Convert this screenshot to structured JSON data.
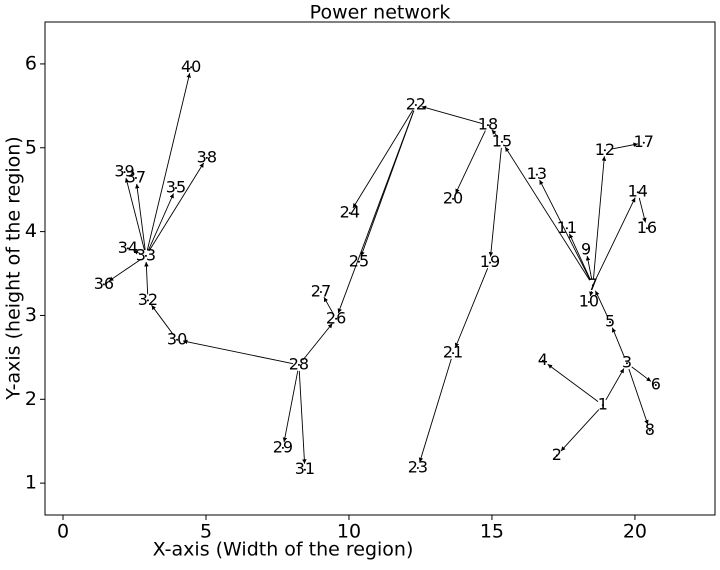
{
  "chart_data": {
    "type": "network",
    "title": "Power network",
    "x_label": "X-axis (Width of the region)",
    "y_label": "Y-axis (height of the region)",
    "xlim": [
      -0.63,
      22.8
    ],
    "ylim": [
      0.62,
      6.5
    ],
    "xticks": [
      0,
      5,
      10,
      15,
      20
    ],
    "yticks": [
      1,
      2,
      3,
      4,
      5,
      6
    ],
    "color": "#000000",
    "nodes": [
      {
        "label": "1",
        "x": 18.88,
        "y": 1.93
      },
      {
        "label": "2",
        "x": 17.27,
        "y": 1.33
      },
      {
        "label": "3",
        "x": 19.72,
        "y": 2.43
      },
      {
        "label": "4",
        "x": 16.78,
        "y": 2.46
      },
      {
        "label": "5",
        "x": 19.13,
        "y": 2.92
      },
      {
        "label": "6",
        "x": 20.73,
        "y": 2.17
      },
      {
        "label": "7",
        "x": 18.53,
        "y": 3.36
      },
      {
        "label": "8",
        "x": 20.52,
        "y": 1.63
      },
      {
        "label": "9",
        "x": 18.29,
        "y": 3.78
      },
      {
        "label": "10",
        "x": 18.39,
        "y": 3.16
      },
      {
        "label": "11",
        "x": 17.62,
        "y": 4.04
      },
      {
        "label": "12",
        "x": 18.95,
        "y": 4.97
      },
      {
        "label": "13",
        "x": 16.57,
        "y": 4.68
      },
      {
        "label": "14",
        "x": 20.1,
        "y": 4.47
      },
      {
        "label": "15",
        "x": 15.35,
        "y": 5.07
      },
      {
        "label": "16",
        "x": 20.42,
        "y": 4.04
      },
      {
        "label": "17",
        "x": 20.31,
        "y": 5.06
      },
      {
        "label": "18",
        "x": 14.86,
        "y": 5.27
      },
      {
        "label": "19",
        "x": 14.93,
        "y": 3.63
      },
      {
        "label": "20",
        "x": 13.64,
        "y": 4.39
      },
      {
        "label": "21",
        "x": 13.64,
        "y": 2.55
      },
      {
        "label": "22",
        "x": 12.34,
        "y": 5.51
      },
      {
        "label": "23",
        "x": 12.41,
        "y": 1.18
      },
      {
        "label": "24",
        "x": 10.03,
        "y": 4.22
      },
      {
        "label": "25",
        "x": 10.35,
        "y": 3.64
      },
      {
        "label": "26",
        "x": 9.55,
        "y": 2.96
      },
      {
        "label": "27",
        "x": 9.02,
        "y": 3.28
      },
      {
        "label": "28",
        "x": 8.25,
        "y": 2.41
      },
      {
        "label": "29",
        "x": 7.69,
        "y": 1.42
      },
      {
        "label": "30",
        "x": 3.99,
        "y": 2.71
      },
      {
        "label": "31",
        "x": 8.46,
        "y": 1.16
      },
      {
        "label": "32",
        "x": 2.97,
        "y": 3.18
      },
      {
        "label": "33",
        "x": 2.9,
        "y": 3.71
      },
      {
        "label": "34",
        "x": 2.27,
        "y": 3.8
      },
      {
        "label": "35",
        "x": 3.95,
        "y": 4.52
      },
      {
        "label": "36",
        "x": 1.43,
        "y": 3.37
      },
      {
        "label": "37",
        "x": 2.55,
        "y": 4.64
      },
      {
        "label": "38",
        "x": 5.03,
        "y": 4.88
      },
      {
        "label": "39",
        "x": 2.15,
        "y": 4.71
      },
      {
        "label": "40",
        "x": 4.48,
        "y": 5.96
      }
    ],
    "edges": [
      [
        0,
        1
      ],
      [
        0,
        3
      ],
      [
        0,
        2
      ],
      [
        2,
        5
      ],
      [
        2,
        7
      ],
      [
        2,
        4
      ],
      [
        4,
        6
      ],
      [
        6,
        8
      ],
      [
        6,
        9
      ],
      [
        6,
        10
      ],
      [
        6,
        11
      ],
      [
        6,
        12
      ],
      [
        6,
        13
      ],
      [
        6,
        14
      ],
      [
        13,
        15
      ],
      [
        11,
        16
      ],
      [
        14,
        17
      ],
      [
        14,
        18
      ],
      [
        17,
        19
      ],
      [
        17,
        21
      ],
      [
        18,
        20
      ],
      [
        20,
        22
      ],
      [
        21,
        23
      ],
      [
        21,
        24
      ],
      [
        21,
        25
      ],
      [
        25,
        26
      ],
      [
        27,
        25
      ],
      [
        27,
        28
      ],
      [
        27,
        30
      ],
      [
        27,
        29
      ],
      [
        29,
        31
      ],
      [
        31,
        32
      ],
      [
        32,
        33
      ],
      [
        32,
        34
      ],
      [
        32,
        35
      ],
      [
        32,
        36
      ],
      [
        32,
        37
      ],
      [
        32,
        38
      ],
      [
        32,
        39
      ]
    ]
  }
}
